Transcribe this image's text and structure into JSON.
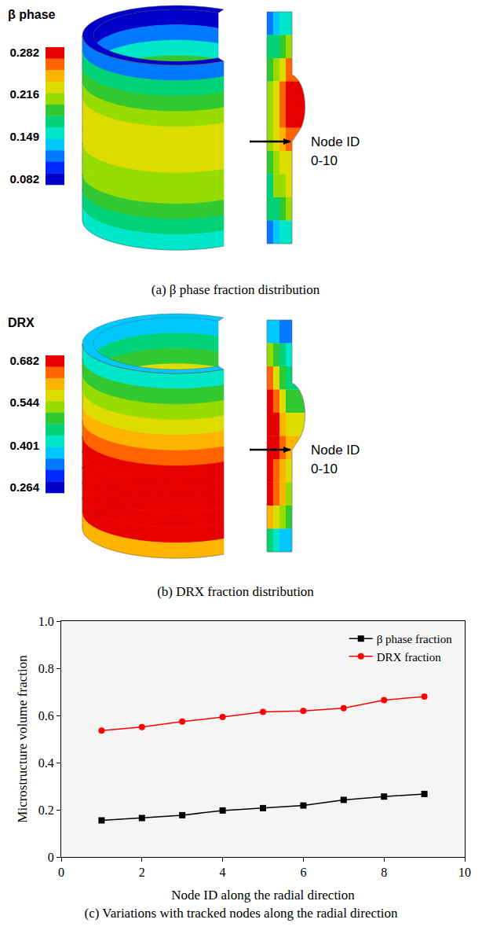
{
  "contour_panels": [
    {
      "title": "β phase",
      "colorbar_range": [
        0.082,
        0.282
      ],
      "colorbar_ticks": [
        0.282,
        0.216,
        0.149,
        0.082
      ],
      "node_label": [
        "Node ID",
        "0-10"
      ],
      "caption": "(a) β phase fraction distribution",
      "inner_wall_field": [
        0.09,
        0.12,
        0.16,
        0.19,
        0.21,
        0.23,
        0.23,
        0.22,
        0.21,
        0.2,
        0.19,
        0.17
      ],
      "outer_wall_field": [
        0.13,
        0.17,
        0.19,
        0.21,
        0.22,
        0.23,
        0.22,
        0.21,
        0.2,
        0.19,
        0.18,
        0.16
      ],
      "section_field": [
        [
          0.13,
          0.14,
          0.15,
          0.16
        ],
        [
          0.17,
          0.18,
          0.19,
          0.2
        ],
        [
          0.19,
          0.21,
          0.23,
          0.25
        ],
        [
          0.2,
          0.23,
          0.26,
          0.28
        ],
        [
          0.2,
          0.23,
          0.26,
          0.27
        ],
        [
          0.2,
          0.22,
          0.24,
          0.25
        ],
        [
          0.19,
          0.21,
          0.22,
          0.23
        ],
        [
          0.18,
          0.2,
          0.21,
          0.22
        ],
        [
          0.17,
          0.18,
          0.19,
          0.2
        ],
        [
          0.13,
          0.14,
          0.15,
          0.16
        ]
      ]
    },
    {
      "title": "DRX",
      "colorbar_range": [
        0.264,
        0.682
      ],
      "colorbar_ticks": [
        0.682,
        0.544,
        0.401,
        0.264
      ],
      "node_label": [
        "Node ID",
        "0-10"
      ],
      "caption": "(b) DRX fraction distribution",
      "inner_wall_field": [
        0.38,
        0.45,
        0.5,
        0.55,
        0.62,
        0.66,
        0.67,
        0.64,
        0.56,
        0.52,
        0.5,
        0.48
      ],
      "outer_wall_field": [
        0.42,
        0.5,
        0.52,
        0.55,
        0.6,
        0.64,
        0.67,
        0.68,
        0.68,
        0.67,
        0.66,
        0.6
      ],
      "section_field": [
        [
          0.4,
          0.38,
          0.36,
          0.34
        ],
        [
          0.52,
          0.48,
          0.44,
          0.42
        ],
        [
          0.62,
          0.56,
          0.5,
          0.46
        ],
        [
          0.66,
          0.62,
          0.56,
          0.5
        ],
        [
          0.68,
          0.66,
          0.6,
          0.55
        ],
        [
          0.68,
          0.66,
          0.62,
          0.58
        ],
        [
          0.67,
          0.64,
          0.6,
          0.56
        ],
        [
          0.66,
          0.62,
          0.58,
          0.54
        ],
        [
          0.6,
          0.56,
          0.52,
          0.5
        ],
        [
          0.44,
          0.42,
          0.4,
          0.38
        ]
      ]
    }
  ],
  "chart_data": {
    "type": "line",
    "caption": "(c) Variations with tracked nodes along the radial direction",
    "x_label": "Node ID along the radial direction",
    "y_label": "Microstructure volume fraction",
    "x": [
      1,
      2,
      3,
      4,
      5,
      6,
      7,
      8,
      9
    ],
    "series": [
      {
        "name": "β phase fraction",
        "color": "#000000",
        "marker": "square",
        "values": [
          0.155,
          0.165,
          0.177,
          0.197,
          0.207,
          0.218,
          0.242,
          0.256,
          0.267
        ]
      },
      {
        "name": "DRX fraction",
        "color": "#ff0000",
        "marker": "circle",
        "values": [
          0.536,
          0.551,
          0.574,
          0.593,
          0.615,
          0.619,
          0.631,
          0.665,
          0.68
        ]
      }
    ],
    "xlim": [
      0,
      10
    ],
    "xticks": [
      0,
      2,
      4,
      6,
      8,
      10
    ],
    "ylim": [
      0,
      1
    ],
    "yticks": [
      0,
      0.2,
      0.4,
      0.6,
      0.8,
      {
        "value": 1,
        "label": "1.0"
      }
    ],
    "grid": false,
    "legend": "upper right"
  }
}
